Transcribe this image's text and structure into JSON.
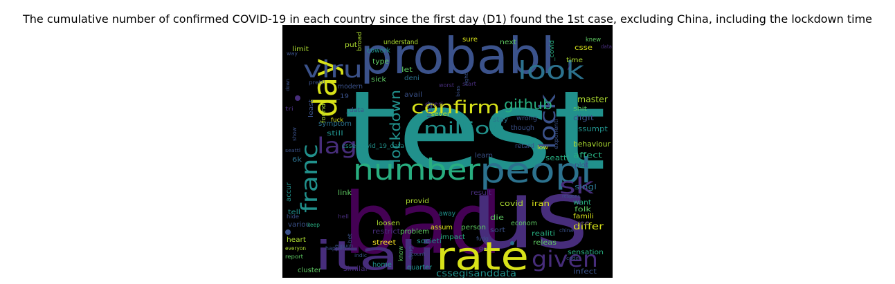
{
  "title": "The cumulative number of confirmed COVID-19 in each country since the first day (D1) found the 1st case, excluding China, including the lockdown time",
  "palette": {
    "purple": "#440154",
    "indigo": "#472d7b",
    "blue": "#3b528b",
    "slate": "#2c728e",
    "teal": "#21918c",
    "green": "#28ae80",
    "lime": "#5ec962",
    "yellowgreen": "#addc30",
    "yellow": "#fde725",
    "background": "#000000"
  },
  "words": [
    {
      "id": "test",
      "text": "test"
    },
    {
      "id": "bad",
      "text": "bad"
    },
    {
      "id": "us",
      "text": "us"
    },
    {
      "id": "probabl",
      "text": "probabl"
    },
    {
      "id": "itali",
      "text": "itali"
    },
    {
      "id": "rate",
      "text": "rate"
    },
    {
      "id": "day",
      "text": "day"
    },
    {
      "id": "peopl",
      "text": "peopl"
    },
    {
      "id": "number",
      "text": "number"
    },
    {
      "id": "look",
      "text": "look"
    },
    {
      "id": "viru",
      "text": "viru"
    },
    {
      "id": "given",
      "text": "given"
    },
    {
      "id": "franc",
      "text": "franc"
    },
    {
      "id": "confirm",
      "text": "confirm"
    },
    {
      "id": "lag",
      "text": "lag"
    },
    {
      "id": "lock",
      "text": "lock"
    },
    {
      "id": "sk",
      "text": "sk"
    },
    {
      "id": "million",
      "text": "million"
    },
    {
      "id": "lockdown",
      "text": "lockdown"
    },
    {
      "id": "github",
      "text": "github"
    },
    {
      "id": "cssegisanddata",
      "text": "cssegisanddata"
    },
    {
      "id": "master",
      "text": "master"
    },
    {
      "id": "differ",
      "text": "differ"
    },
    {
      "id": "covid",
      "text": "covid"
    },
    {
      "id": "behaviour",
      "text": "behaviour"
    },
    {
      "id": "affect",
      "text": "affect"
    },
    {
      "id": "digit",
      "text": "digit"
    },
    {
      "id": "assumpt",
      "text": "assumpt"
    },
    {
      "id": "csse_covid_19_data",
      "text": "csse_covid_19_data"
    },
    {
      "id": "symptom",
      "text": "symptom"
    },
    {
      "id": "still",
      "text": "still"
    },
    {
      "id": "seattl",
      "text": "seattl"
    },
    {
      "id": "singl",
      "text": "singl"
    },
    {
      "id": "iran",
      "text": "iran"
    },
    {
      "id": "want",
      "text": "want"
    },
    {
      "id": "famili",
      "text": "famili"
    },
    {
      "id": "folk",
      "text": "folk"
    },
    {
      "id": "tree",
      "text": "tree"
    },
    {
      "id": "releas",
      "text": "releas"
    },
    {
      "id": "sensation",
      "text": "sensation"
    },
    {
      "id": "infect",
      "text": "infect"
    },
    {
      "id": "realiti",
      "text": "realiti"
    },
    {
      "id": "econom",
      "text": "econom"
    },
    {
      "id": "sort",
      "text": "sort"
    },
    {
      "id": "die",
      "text": "die"
    },
    {
      "id": "person",
      "text": "person"
    },
    {
      "id": "impact",
      "text": "impact"
    },
    {
      "id": "assum",
      "text": "assum"
    },
    {
      "id": "societi",
      "text": "societi"
    },
    {
      "id": "problem",
      "text": "problem"
    },
    {
      "id": "loosen",
      "text": "loosen"
    },
    {
      "id": "restrict",
      "text": "restrict"
    },
    {
      "id": "street",
      "text": "street"
    },
    {
      "id": "quarter",
      "text": "quarter"
    },
    {
      "id": "home",
      "text": "home"
    },
    {
      "id": "cluster",
      "text": "cluster"
    },
    {
      "id": "heart",
      "text": "heart"
    },
    {
      "id": "variou",
      "text": "variou"
    },
    {
      "id": "link",
      "text": "link"
    },
    {
      "id": "provid",
      "text": "provid"
    },
    {
      "id": "away",
      "text": "away"
    },
    {
      "id": "result",
      "text": "result"
    },
    {
      "id": "accur",
      "text": "accur"
    },
    {
      "id": "tell",
      "text": "tell"
    },
    {
      "id": "6k",
      "text": "6k"
    },
    {
      "id": "found",
      "text": "found"
    },
    {
      "id": "least",
      "text": "least"
    },
    {
      "id": "data",
      "text": "_data"
    },
    {
      "id": "19",
      "text": "_19"
    },
    {
      "id": "modern",
      "text": "modern"
    },
    {
      "id": "type",
      "text": "type"
    },
    {
      "id": "cowork",
      "text": "cowork"
    },
    {
      "id": "limit",
      "text": "limit"
    },
    {
      "id": "put",
      "text": "put"
    },
    {
      "id": "broad",
      "text": "broad"
    },
    {
      "id": "understand",
      "text": "understand"
    },
    {
      "id": "sure",
      "text": "sure"
    },
    {
      "id": "next",
      "text": "next"
    },
    {
      "id": "csse",
      "text": "csse"
    },
    {
      "id": "time",
      "text": "time"
    },
    {
      "id": "covid2",
      "text": "_covid"
    },
    {
      "id": "let",
      "text": "let"
    },
    {
      "id": "deni",
      "text": "deni"
    },
    {
      "id": "sick",
      "text": "sick"
    },
    {
      "id": "avail",
      "text": "avail"
    },
    {
      "id": "everi",
      "text": "everi"
    },
    {
      "id": "liter",
      "text": "liter"
    },
    {
      "id": "sever",
      "text": "sever"
    },
    {
      "id": "stay",
      "text": "stay"
    },
    {
      "id": "though",
      "text": "though"
    },
    {
      "id": "wrong",
      "text": "wrong"
    },
    {
      "id": "learn",
      "text": "learn"
    },
    {
      "id": "retard",
      "text": "retard"
    },
    {
      "id": "plot",
      "text": "plot"
    },
    {
      "id": "low",
      "text": "low"
    },
    {
      "id": "exponenti",
      "text": "exponenti"
    },
    {
      "id": "shit",
      "text": "shit"
    },
    {
      "id": "knew",
      "text": "knew"
    },
    {
      "id": "data2",
      "text": "data"
    },
    {
      "id": "fuck",
      "text": "fuck"
    },
    {
      "id": "worst",
      "text": "worst"
    },
    {
      "id": "pretti",
      "text": "pretti"
    },
    {
      "id": "way",
      "text": "way"
    },
    {
      "id": "tri",
      "text": "tri"
    },
    {
      "id": "show",
      "text": "show"
    },
    {
      "id": "hide",
      "text": "hide"
    },
    {
      "id": "keep",
      "text": "keep"
    },
    {
      "id": "hell",
      "text": "hell"
    },
    {
      "id": "everyon",
      "text": "everyon"
    },
    {
      "id": "report",
      "text": "report"
    },
    {
      "id": "happen",
      "text": "happen"
    },
    {
      "id": "bet",
      "text": "bet"
    },
    {
      "id": "fudg",
      "text": "fudg"
    },
    {
      "id": "know",
      "text": "know"
    },
    {
      "id": "drug",
      "text": "drug"
    },
    {
      "id": "china",
      "text": "china"
    },
    {
      "id": "start",
      "text": "start"
    },
    {
      "id": "go",
      "text": "go"
    },
    {
      "id": "enough",
      "text": "enough"
    },
    {
      "id": "similar",
      "text": "similar"
    },
    {
      "id": "down",
      "text": "down"
    },
    {
      "id": "seattl2",
      "text": "seattl"
    },
    {
      "id": "respons",
      "text": "respons"
    },
    {
      "id": "bias",
      "text": "bias"
    },
    {
      "id": "count",
      "text": "count"
    },
    {
      "id": "indic",
      "text": "indic"
    },
    {
      "id": "code",
      "text": "code"
    },
    {
      "id": "right",
      "text": "right"
    },
    {
      "id": "slash",
      "text": "/"
    }
  ]
}
